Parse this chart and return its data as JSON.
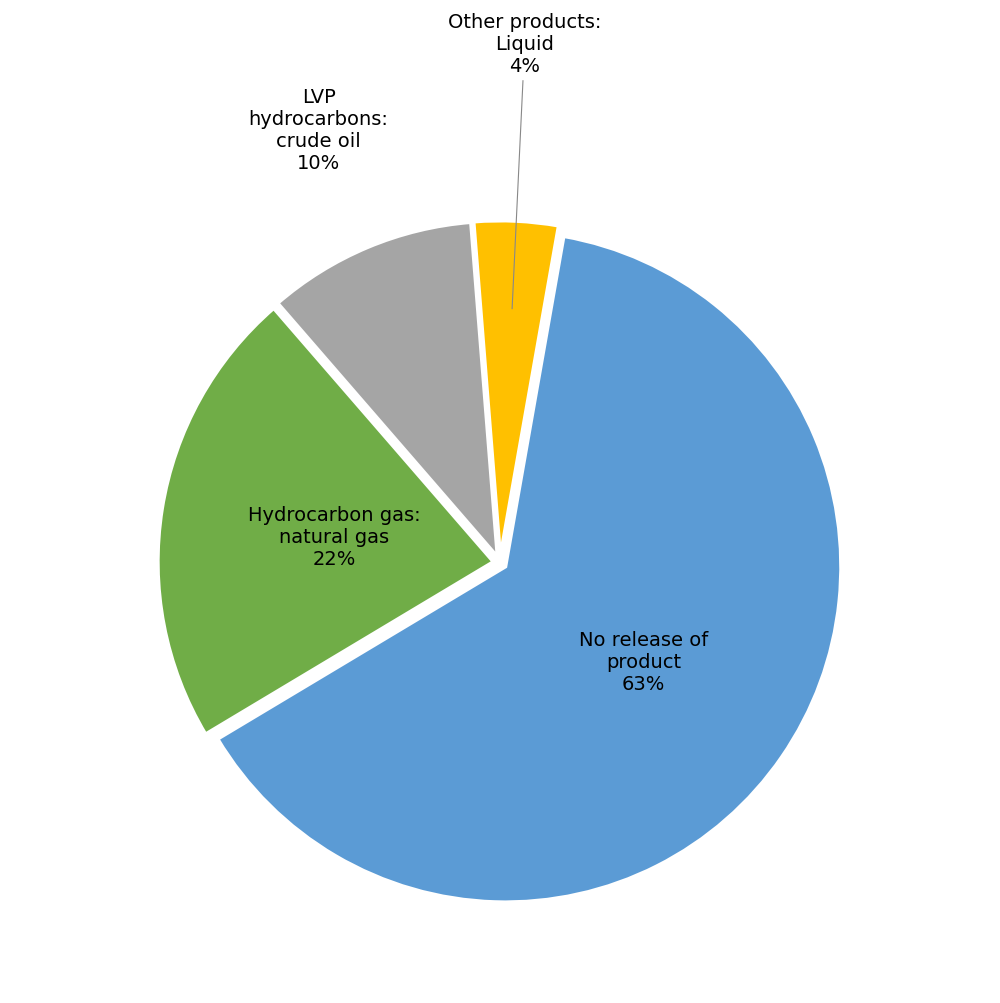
{
  "sizes": [
    63,
    4,
    10,
    22
  ],
  "colors": [
    "#5B9BD5",
    "#FFC000",
    "#A5A5A5",
    "#70AD47"
  ],
  "startangle": 90,
  "explode": [
    0.02,
    0.02,
    0.02,
    0.02
  ],
  "background_color": "#FFFFFF",
  "text_color": "#000000",
  "font_size": 14,
  "label_no_release": "No release of\nproduct\n63%",
  "label_hydro_gas": "Hydrocarbon gas:\nnatural gas\n22%",
  "label_lvp": "LVP\nhydrocarbons:\ncrude oil\n10%",
  "label_other": "Other products:\nLiquid\n4%"
}
